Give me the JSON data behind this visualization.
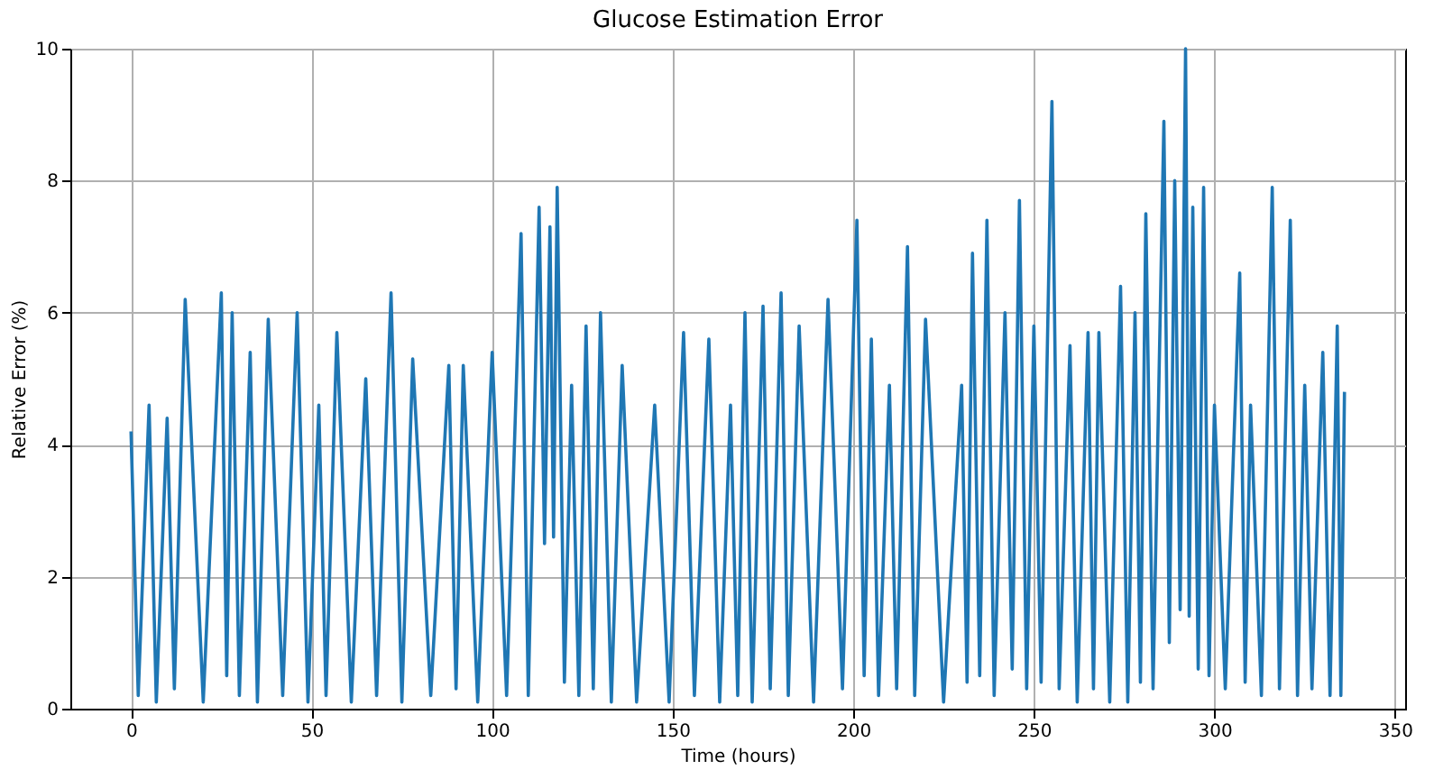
{
  "chart_data": {
    "type": "line",
    "title": "Glucose Estimation Error",
    "xlabel": "Time (hours)",
    "ylabel": "Relative Error (%)",
    "x": [
      0,
      2,
      5,
      7,
      10,
      12,
      15,
      20,
      25,
      26.5,
      28,
      30,
      33,
      35,
      38,
      42,
      46,
      49,
      52,
      54,
      57,
      61,
      65,
      68,
      72,
      75,
      78,
      83,
      88,
      90,
      92,
      96,
      100,
      104,
      108,
      110,
      113,
      114.5,
      116,
      117,
      118,
      120,
      122,
      124,
      126,
      128,
      130,
      133,
      136,
      140,
      145,
      149,
      153,
      156,
      160,
      163,
      166,
      168,
      170,
      172,
      175,
      177,
      180,
      182,
      185,
      189,
      193,
      197,
      201,
      203,
      205,
      207,
      210,
      212,
      215,
      217,
      220,
      225,
      230,
      231.5,
      233,
      235,
      237,
      239,
      242,
      244,
      246,
      248,
      250,
      252,
      255,
      257,
      260,
      262,
      265,
      266.5,
      268,
      271,
      274,
      276,
      278,
      279.5,
      281,
      283,
      286,
      287.5,
      289,
      290.5,
      292,
      293,
      294,
      295.5,
      297,
      298.5,
      300,
      303,
      307,
      308.5,
      310,
      313,
      316,
      318,
      321,
      323,
      325,
      327,
      330,
      332,
      334,
      335,
      336
    ],
    "series": [
      {
        "color": "#1f77b4",
        "values": [
          4.2,
          0.2,
          4.6,
          0.1,
          4.4,
          0.3,
          6.2,
          0.1,
          6.3,
          0.5,
          6.0,
          0.2,
          5.4,
          0.1,
          5.9,
          0.2,
          6.0,
          0.1,
          4.6,
          0.2,
          5.7,
          0.1,
          5.0,
          0.2,
          6.3,
          0.1,
          5.3,
          0.2,
          5.2,
          0.3,
          5.2,
          0.1,
          5.4,
          0.2,
          7.2,
          0.2,
          7.6,
          2.5,
          7.3,
          2.6,
          7.9,
          0.4,
          4.9,
          0.2,
          5.8,
          0.3,
          6.0,
          0.1,
          5.2,
          0.1,
          4.6,
          0.1,
          5.7,
          0.2,
          5.6,
          0.1,
          4.6,
          0.2,
          6.0,
          0.1,
          6.1,
          0.3,
          6.3,
          0.2,
          5.8,
          0.1,
          6.2,
          0.3,
          7.4,
          0.5,
          5.6,
          0.2,
          4.9,
          0.3,
          7.0,
          0.2,
          5.9,
          0.1,
          4.9,
          0.4,
          6.9,
          0.5,
          7.4,
          0.2,
          6.0,
          0.6,
          7.7,
          0.3,
          5.8,
          0.4,
          9.2,
          0.3,
          5.5,
          0.1,
          5.7,
          0.3,
          5.7,
          0.1,
          6.4,
          0.1,
          6.0,
          0.4,
          7.5,
          0.3,
          8.9,
          1.0,
          8.0,
          1.5,
          10.0,
          1.4,
          7.6,
          0.6,
          7.9,
          0.5,
          4.6,
          0.3,
          6.6,
          0.4,
          4.6,
          0.2,
          7.9,
          0.3,
          7.4,
          0.2,
          4.9,
          0.3,
          5.4,
          0.2,
          5.8,
          0.2,
          4.8
        ]
      }
    ],
    "xlim": [
      -16.8,
      352.8
    ],
    "xticks": [
      0,
      50,
      100,
      150,
      200,
      250,
      300,
      350
    ],
    "ylim": [
      0,
      10
    ],
    "yticks": [
      0,
      2,
      4,
      6,
      8,
      10
    ],
    "grid": true,
    "legend": false,
    "marker": "none",
    "line_style": "solid"
  }
}
